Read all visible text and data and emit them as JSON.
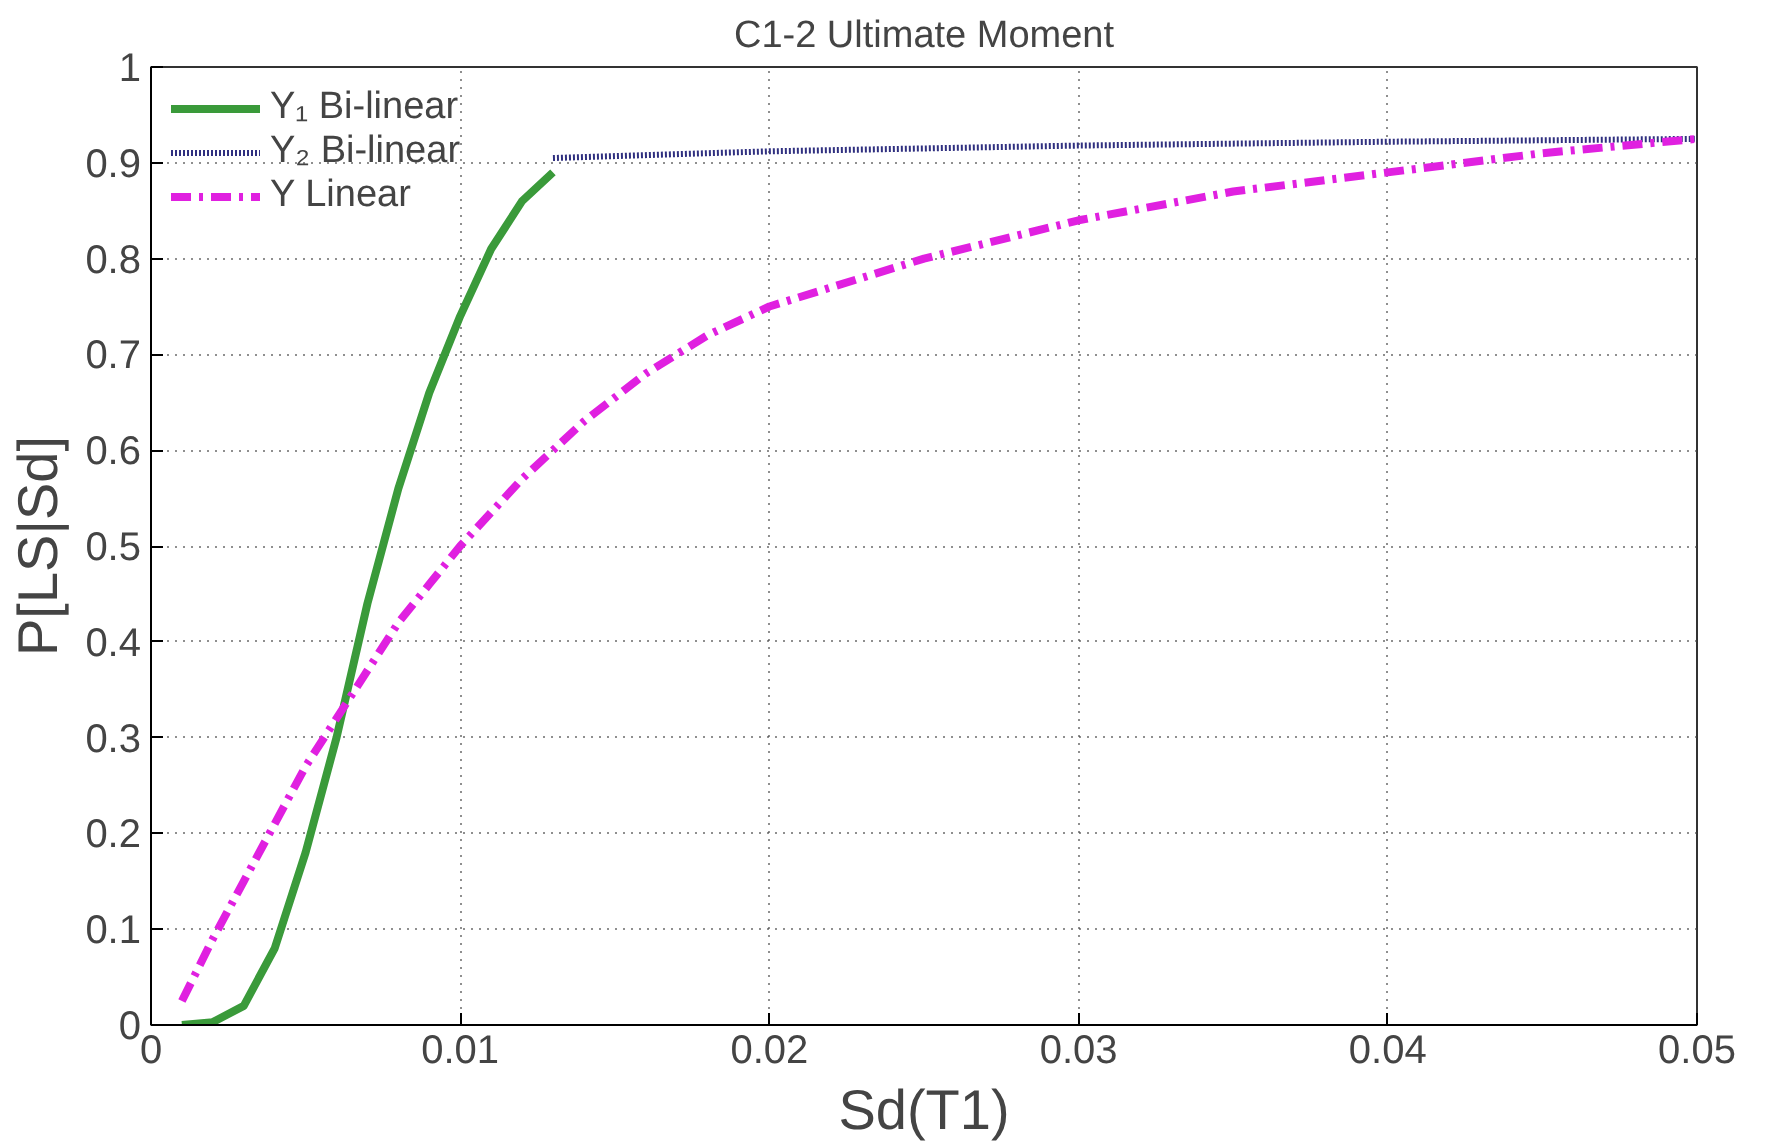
{
  "chart_data": {
    "type": "line",
    "title": "C1-2 Ultimate Moment",
    "xlabel": "Sd(T1)",
    "ylabel": "P[LS|Sd]",
    "xlim": [
      0,
      0.05
    ],
    "ylim": [
      0,
      1
    ],
    "xticks": [
      0,
      0.01,
      0.02,
      0.03,
      0.04,
      0.05
    ],
    "yticks": [
      0,
      0.1,
      0.2,
      0.3,
      0.4,
      0.5,
      0.6,
      0.7,
      0.8,
      0.9,
      1
    ],
    "grid": true,
    "legend": "top left",
    "series": [
      {
        "name": "Y₁ Bi-linear",
        "color": "#3a9a3a",
        "line_style": "solid",
        "x": [
          0.001,
          0.002,
          0.003,
          0.004,
          0.005,
          0.006,
          0.007,
          0.008,
          0.009,
          0.01,
          0.011,
          0.012,
          0.013
        ],
        "values": [
          0,
          0.003,
          0.02,
          0.08,
          0.18,
          0.3,
          0.44,
          0.56,
          0.66,
          0.74,
          0.81,
          0.86,
          0.89
        ]
      },
      {
        "name": "Y₂ Bi-linear",
        "color": "#303080",
        "line_style": "dotted",
        "x": [
          0.013,
          0.02,
          0.03,
          0.04,
          0.05
        ],
        "values": [
          0.905,
          0.912,
          0.918,
          0.922,
          0.925
        ]
      },
      {
        "name": "Y Linear",
        "color": "#e020e0",
        "line_style": "dashdot",
        "x": [
          0.001,
          0.002,
          0.003,
          0.004,
          0.005,
          0.006,
          0.007,
          0.008,
          0.009,
          0.01,
          0.012,
          0.014,
          0.016,
          0.018,
          0.02,
          0.025,
          0.03,
          0.035,
          0.04,
          0.045,
          0.05
        ],
        "values": [
          0.025,
          0.09,
          0.15,
          0.21,
          0.27,
          0.32,
          0.37,
          0.42,
          0.46,
          0.5,
          0.57,
          0.63,
          0.68,
          0.72,
          0.75,
          0.8,
          0.84,
          0.87,
          0.89,
          0.91,
          0.925
        ]
      }
    ]
  }
}
